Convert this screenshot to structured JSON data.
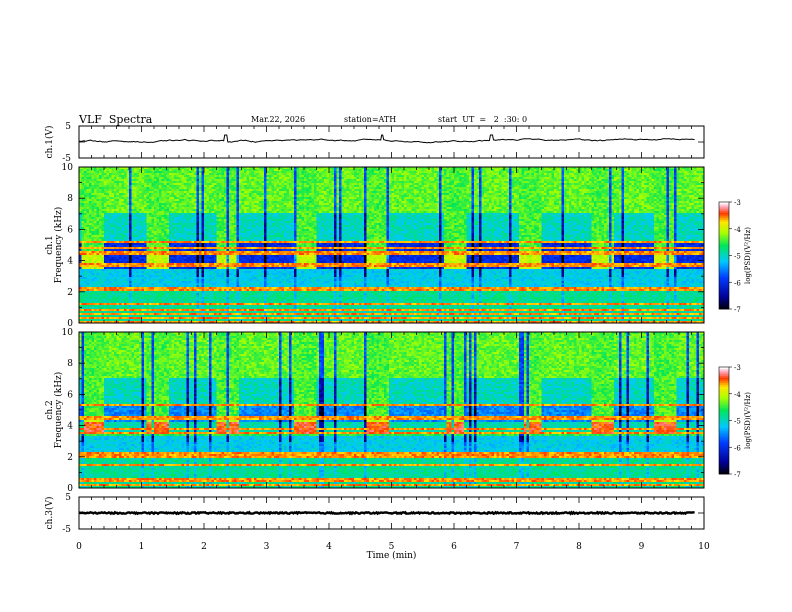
{
  "header": {
    "title": "VLF  Spectra",
    "date": "Mar.22, 2026",
    "station": "station=ATH",
    "start": "start  UT  =   2  :30: 0"
  },
  "chart_data": [
    {
      "type": "line",
      "ylabel": "ch.1(V)",
      "ylim": [
        -5,
        5
      ],
      "yticks": [
        "5",
        "-5"
      ],
      "xlim": [
        0,
        10
      ],
      "series": [
        {
          "mean": 0.2,
          "range": [
            -0.6,
            1.0
          ],
          "spikes": [
            2.35,
            4.85,
            6.6
          ]
        }
      ],
      "color": "#000000"
    },
    {
      "type": "heatmap",
      "ylabel_top": "ch.1",
      "ylabel": "Frequency  (kHz)",
      "ylim": [
        0,
        10
      ],
      "yticks": [
        "0",
        "2",
        "4",
        "6",
        "8",
        "10"
      ],
      "xlim": [
        0,
        10
      ],
      "colorbar": {
        "label": "log(PSD)(V²/Hz)",
        "ticks": [
          "-3",
          "-4",
          "-5",
          "-6",
          "-7"
        ],
        "range": [
          -7,
          -3
        ]
      },
      "bands_khz": [
        0.1,
        0.3,
        0.55,
        0.8,
        1.2,
        2.2,
        3.7,
        4.5,
        4.8,
        5.2
      ],
      "quiet_intervals_min": [
        [
          0.05,
          0.4
        ],
        [
          1.1,
          1.45
        ],
        [
          2.2,
          2.55
        ],
        [
          3.45,
          3.8
        ],
        [
          4.6,
          4.95
        ],
        [
          5.85,
          6.2
        ],
        [
          7.05,
          7.4
        ],
        [
          8.2,
          8.55
        ],
        [
          9.2,
          9.55
        ]
      ]
    },
    {
      "type": "heatmap",
      "ylabel_top": "ch.2",
      "ylabel": "Frequency  (kHz)",
      "ylim": [
        0,
        10
      ],
      "yticks": [
        "0",
        "2",
        "4",
        "6",
        "8",
        "10"
      ],
      "xlim": [
        0,
        10
      ],
      "colorbar": {
        "label": "log(PSD)(V²/Hz)",
        "ticks": [
          "-3",
          "-4",
          "-5",
          "-6",
          "-7"
        ],
        "range": [
          -7,
          -3
        ]
      },
      "bands_khz": [
        0.2,
        0.5,
        1.5,
        2.0,
        2.2,
        3.5,
        3.8,
        4.5,
        5.3
      ],
      "quiet_intervals_min": [
        [
          0.05,
          0.4
        ],
        [
          1.1,
          1.45
        ],
        [
          2.2,
          2.55
        ],
        [
          3.45,
          3.8
        ],
        [
          4.6,
          4.95
        ],
        [
          5.85,
          6.2
        ],
        [
          7.05,
          7.4
        ],
        [
          8.2,
          8.55
        ],
        [
          9.2,
          9.55
        ]
      ]
    },
    {
      "type": "line",
      "ylabel": "ch.3(V)",
      "ylim": [
        -5,
        5
      ],
      "yticks": [
        "5",
        "-5"
      ],
      "xlim": [
        0,
        10
      ],
      "series": [
        {
          "mean": 0.0,
          "range": [
            -0.3,
            0.3
          ]
        }
      ],
      "color": "#000000"
    }
  ],
  "xaxis": {
    "label": "Time  (min)",
    "ticks": [
      "0",
      "1",
      "2",
      "3",
      "4",
      "5",
      "6",
      "7",
      "8",
      "9",
      "10"
    ]
  }
}
